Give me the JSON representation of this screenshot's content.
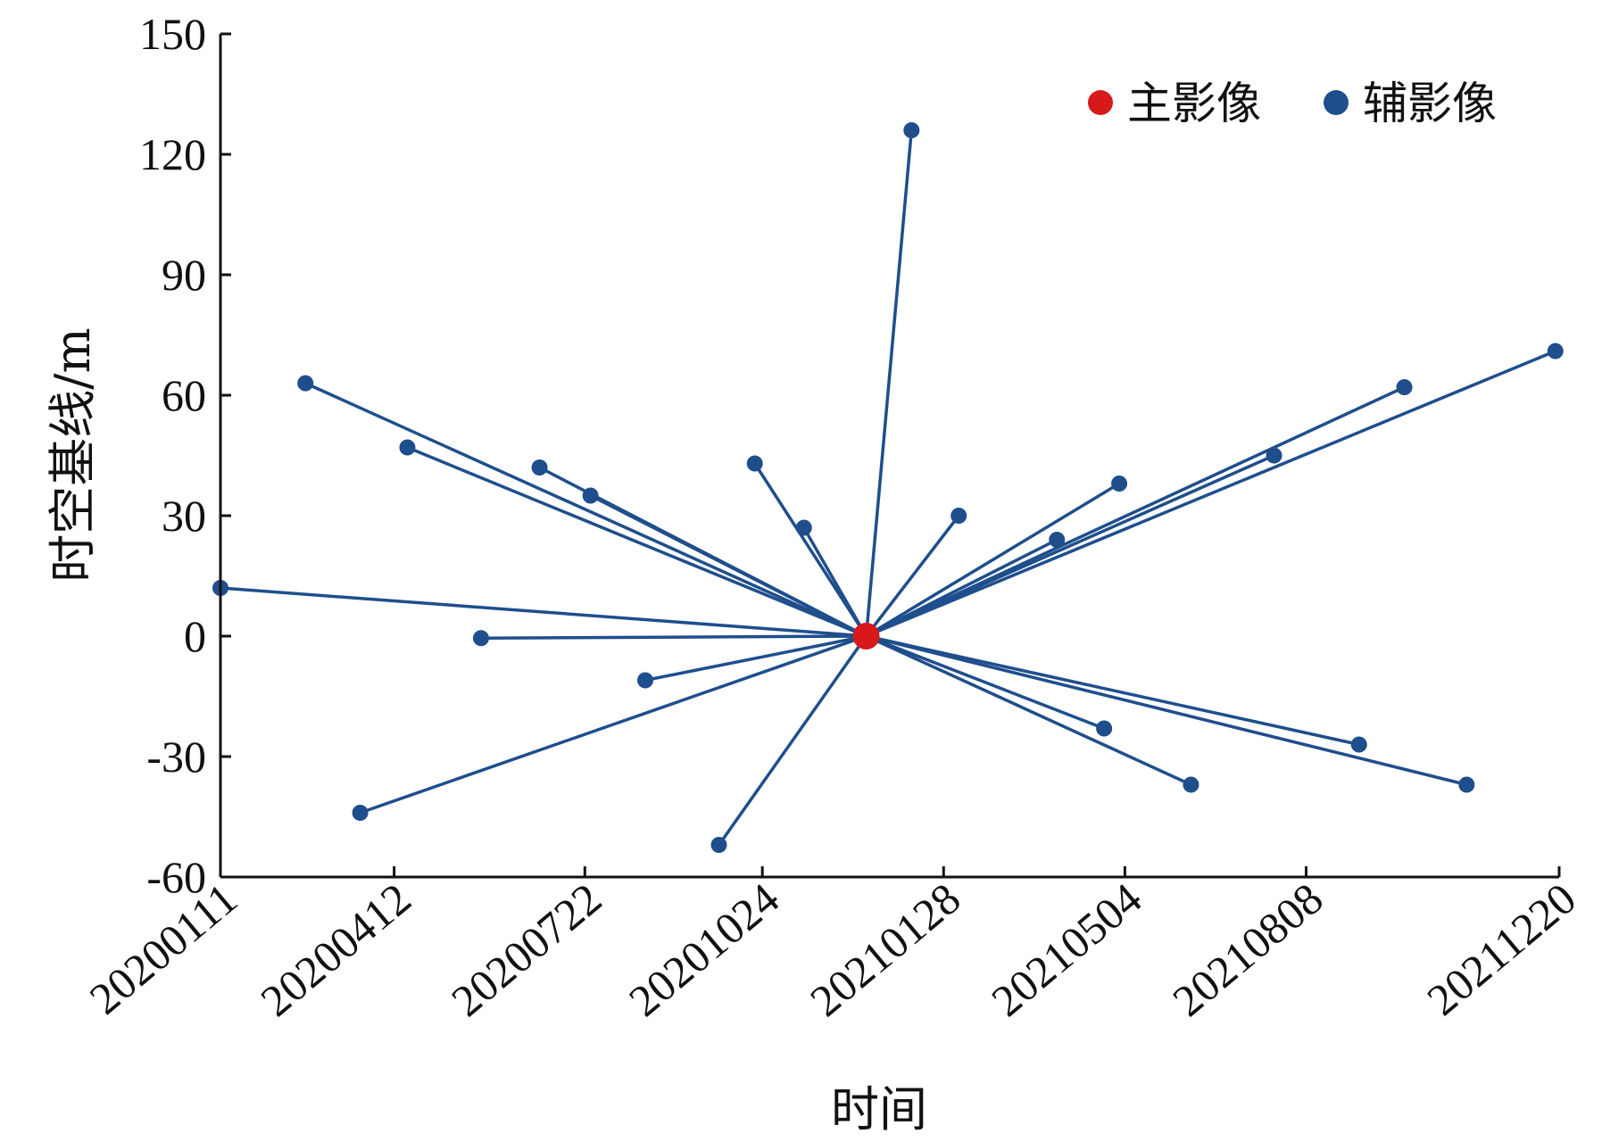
{
  "chart_data": {
    "type": "scatter",
    "title": "",
    "xlabel": "时间",
    "ylabel": "时空基线/m",
    "x_ticks": [
      "20200111",
      "20200412",
      "20200722",
      "20201024",
      "20210128",
      "20210504",
      "20210808",
      "20211220"
    ],
    "x_range": [
      "2020-01-11",
      "2021-12-20"
    ],
    "ylim": [
      -60,
      150
    ],
    "y_ticks": [
      -60,
      -30,
      0,
      30,
      60,
      90,
      120,
      150
    ],
    "grid": false,
    "legend_position": "top-right",
    "colors": {
      "master": "#d7191c",
      "slave": "#1f4e8c",
      "line": "#1f4e8c"
    },
    "series": [
      {
        "name": "主影像",
        "points": [
          {
            "date": "2020-12-18",
            "y": 0
          }
        ]
      },
      {
        "name": "辅影像",
        "points": [
          {
            "date": "2020-01-11",
            "y": 12
          },
          {
            "date": "2020-02-25",
            "y": 63
          },
          {
            "date": "2020-03-25",
            "y": -44
          },
          {
            "date": "2020-04-19",
            "y": 47
          },
          {
            "date": "2020-05-28",
            "y": -0.5
          },
          {
            "date": "2020-06-28",
            "y": 42
          },
          {
            "date": "2020-07-25",
            "y": 35
          },
          {
            "date": "2020-08-23",
            "y": -11
          },
          {
            "date": "2020-10-01",
            "y": -52
          },
          {
            "date": "2020-10-20",
            "y": 43
          },
          {
            "date": "2020-11-15",
            "y": 27
          },
          {
            "date": "2021-01-11",
            "y": 126
          },
          {
            "date": "2021-02-05",
            "y": 30
          },
          {
            "date": "2021-03-29",
            "y": 24
          },
          {
            "date": "2021-04-23",
            "y": -23
          },
          {
            "date": "2021-05-01",
            "y": 38
          },
          {
            "date": "2021-06-08",
            "y": -37
          },
          {
            "date": "2021-07-22",
            "y": 45
          },
          {
            "date": "2021-09-05",
            "y": -27
          },
          {
            "date": "2021-09-29",
            "y": 62
          },
          {
            "date": "2021-11-01",
            "y": -37
          },
          {
            "date": "2021-12-18",
            "y": 71
          }
        ]
      }
    ]
  }
}
